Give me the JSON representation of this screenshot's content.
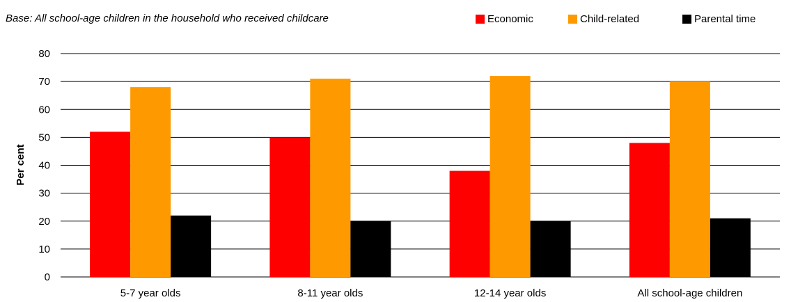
{
  "base_note": "Base: All school-age children in the household who received childcare",
  "colors": {
    "Economic": "#ff0000",
    "Child-related": "#ff9900",
    "Parental time": "#000000"
  },
  "chart_data": {
    "type": "bar",
    "categories": [
      "5-7 year olds",
      "8-11 year olds",
      "12-14 year olds",
      "All school-age children"
    ],
    "series": [
      {
        "name": "Economic",
        "values": [
          52,
          50,
          38,
          48
        ]
      },
      {
        "name": "Child-related",
        "values": [
          68,
          71,
          72,
          70
        ]
      },
      {
        "name": "Parental time",
        "values": [
          22,
          20,
          20,
          21
        ]
      }
    ],
    "ylabel": "Per cent",
    "ylim": [
      0,
      80
    ],
    "yticks": [
      0,
      10,
      20,
      30,
      40,
      50,
      60,
      70,
      80
    ],
    "grid": true,
    "legend": "top-right"
  }
}
